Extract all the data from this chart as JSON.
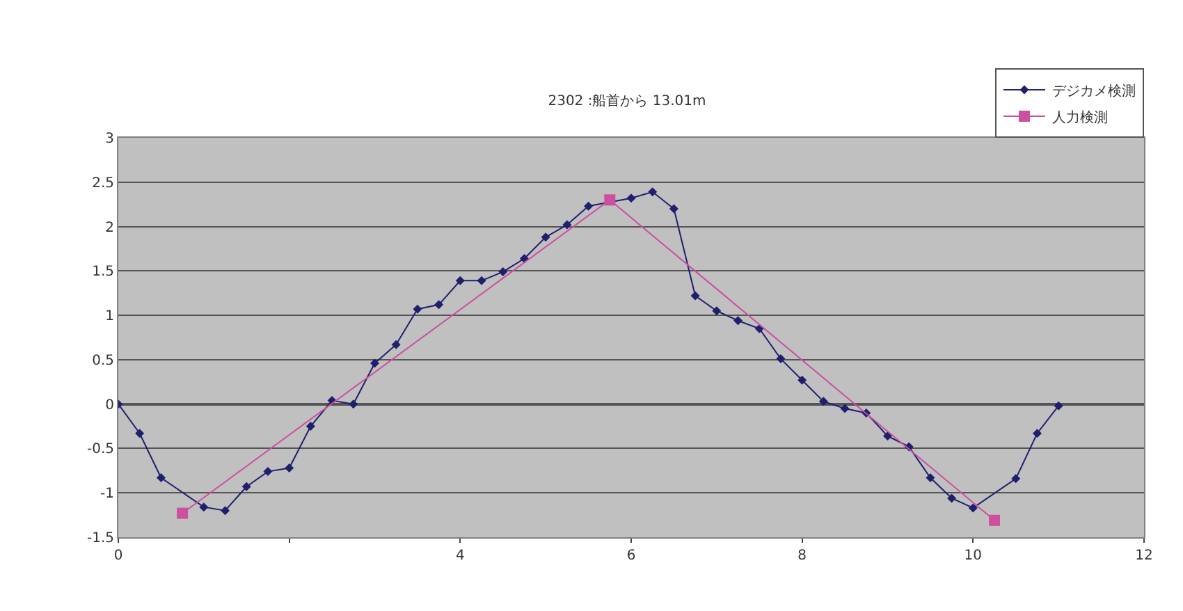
{
  "chart_data": {
    "type": "line",
    "title": "2302 :船首から 13.01m",
    "xlim": [
      0,
      12
    ],
    "xticks": [
      0,
      {
        "value": 2,
        "label": null
      },
      4,
      6,
      8,
      10,
      12
    ],
    "ylim": [
      -1.5,
      3
    ],
    "yticks": [
      -1.5,
      -1,
      -0.5,
      0,
      0.5,
      1,
      1.5,
      2,
      2.5,
      3
    ],
    "grid": "y",
    "legend": "top right",
    "series": [
      {
        "name": "デジカメ検測",
        "color": "#1f1f6e",
        "marker": "diamond",
        "x": [
          0,
          0.25,
          0.5,
          0.75,
          1,
          1.25,
          1.5,
          1.75,
          2,
          2.25,
          2.5,
          2.75,
          3,
          3.25,
          3.5,
          3.75,
          4,
          4.25,
          4.5,
          4.75,
          5,
          5.25,
          5.5,
          5.75,
          6,
          6.25,
          6.5,
          6.75,
          7,
          7.25,
          7.5,
          7.75,
          8,
          8.25,
          8.5,
          8.75,
          9,
          9.25,
          9.5,
          9.75,
          10,
          10.25,
          10.5,
          10.75,
          11
        ],
        "values": [
          0,
          -0.33,
          -0.83,
          null,
          -1.16,
          -1.2,
          -0.93,
          -0.76,
          -0.72,
          -0.25,
          0.04,
          0,
          0.46,
          0.67,
          1.07,
          1.12,
          1.39,
          1.39,
          1.49,
          1.64,
          1.88,
          2.02,
          2.23,
          null,
          2.32,
          2.39,
          2.2,
          1.22,
          1.05,
          0.94,
          0.85,
          0.51,
          0.27,
          0.03,
          -0.05,
          -0.1,
          -0.36,
          -0.48,
          -0.83,
          -1.06,
          -1.17,
          null,
          -0.84,
          -0.33,
          -0.02
        ]
      },
      {
        "name": "人力検測",
        "color": "#cc4fa0",
        "marker": "square",
        "x": [
          0.75,
          5.75,
          10.25
        ],
        "values": [
          -1.23,
          2.3,
          -1.31
        ]
      }
    ]
  }
}
